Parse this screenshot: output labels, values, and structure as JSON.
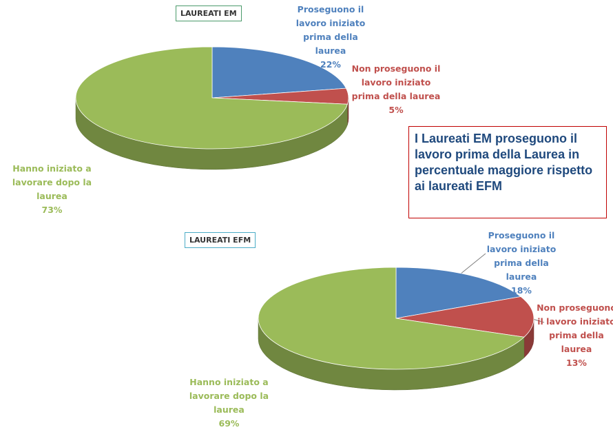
{
  "chart_data": [
    {
      "type": "pie",
      "title": "LAUREATI EM",
      "categories": [
        "Proseguono il lavoro iniziato prima della laurea",
        "Non proseguono il lavoro iniziato prima della laurea",
        "Hanno iniziato a lavorare dopo la laurea"
      ],
      "values": [
        22,
        5,
        73
      ],
      "value_labels": [
        "22%",
        "5%",
        "73%"
      ],
      "colors": [
        "#4f81bd",
        "#c0504d",
        "#9bbb59"
      ]
    },
    {
      "type": "pie",
      "title": "LAUREATI EFM",
      "categories": [
        "Proseguono il lavoro iniziato prima della laurea",
        "Non proseguono il lavoro iniziato prima della laurea",
        "Hanno iniziato a lavorare dopo la laurea"
      ],
      "values": [
        18,
        13,
        69
      ],
      "value_labels": [
        "18%",
        "13%",
        "69%"
      ],
      "colors": [
        "#4f81bd",
        "#c0504d",
        "#9bbb59"
      ]
    }
  ],
  "annotation": "I Laureati EM proseguono il lavoro prima della Laurea in percentuale maggiore rispetto ai laureati EFM"
}
